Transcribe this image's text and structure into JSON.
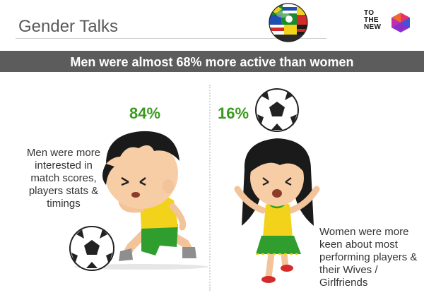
{
  "header": {
    "title": "Gender Talks",
    "brand_lines": [
      "TO",
      "THE",
      "NEW"
    ]
  },
  "banner": {
    "text": "Men were almost 68% more active than women"
  },
  "men": {
    "percentage": "84%",
    "description": "Men were more interested in match scores, players stats & timings"
  },
  "women": {
    "percentage": "16%",
    "description": "Women were more keen about most performing players & their Wives / Girlfriends"
  },
  "colors": {
    "banner_bg": "#5c5c5c",
    "percentage_green": "#3a9a1e",
    "jersey_yellow": "#f2d21b",
    "shorts_green": "#2f9e2f"
  },
  "icons": [
    "world-cup-ball-icon",
    "brand-logo-icon",
    "soccer-ball-icon",
    "boy-player-illustration",
    "girl-fan-illustration"
  ]
}
